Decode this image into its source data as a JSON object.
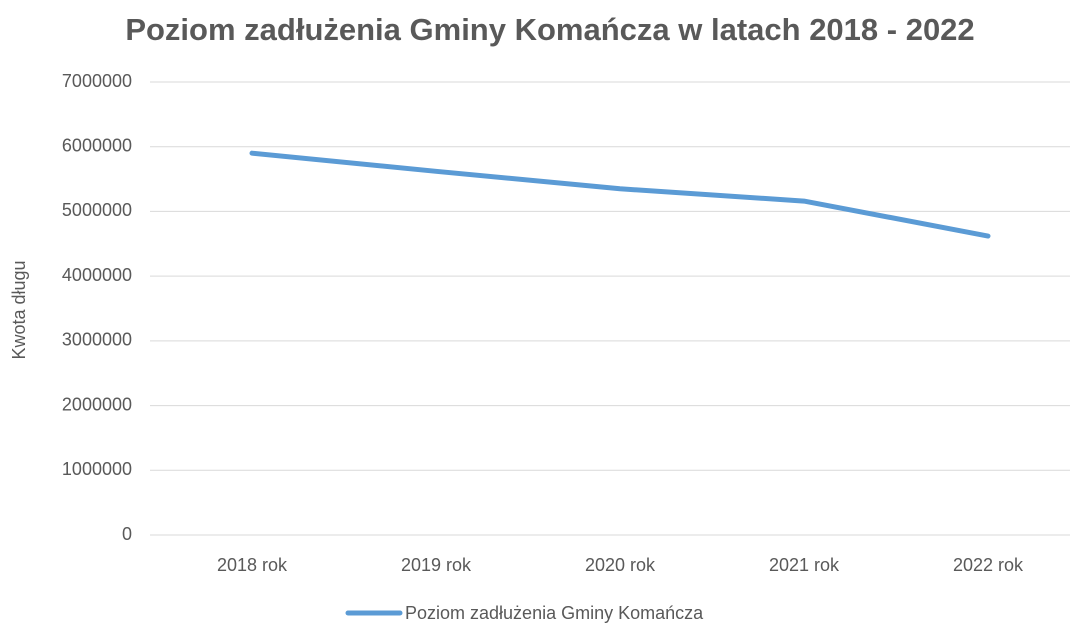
{
  "chart_data": {
    "type": "line",
    "title": "Poziom zadłużenia Gminy Komańcza w latach 2018 - 2022",
    "y_label": "Kwota długu",
    "categories": [
      "2018 rok",
      "2019 rok",
      "2020 rok",
      "2021 rok",
      "2022 rok"
    ],
    "series": [
      {
        "name": "Poziom zadłużenia Gminy Komańcza",
        "color": "#5b9bd5",
        "values": [
          5900000,
          5620000,
          5350000,
          5160000,
          4620000
        ]
      }
    ],
    "ylim": [
      0,
      7000000
    ],
    "yticks": [
      0,
      1000000,
      2000000,
      3000000,
      4000000,
      5000000,
      6000000,
      7000000
    ],
    "grid": true,
    "legend": "bottom"
  }
}
